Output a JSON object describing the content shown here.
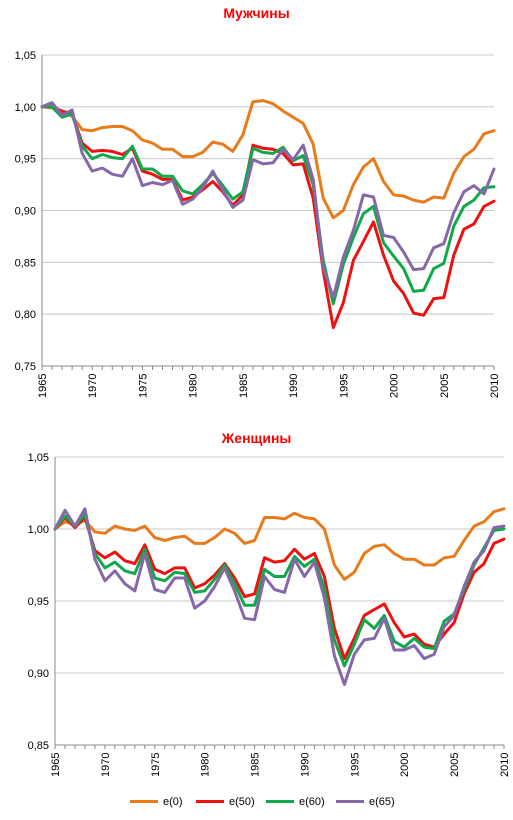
{
  "colors": {
    "e0": "#e87b1c",
    "e50": "#ee1111",
    "e60": "#10a84a",
    "e65": "#8668a8",
    "title": "#ff0000"
  },
  "legend": [
    {
      "key": "e0",
      "label": "e(0)"
    },
    {
      "key": "e50",
      "label": "e(50)"
    },
    {
      "key": "e60",
      "label": "e(60)"
    },
    {
      "key": "e65",
      "label": "e(65)"
    }
  ],
  "chart_data": [
    {
      "type": "line",
      "title": "Мужчины",
      "x": [
        1965,
        1966,
        1967,
        1968,
        1969,
        1970,
        1971,
        1972,
        1973,
        1974,
        1975,
        1976,
        1977,
        1978,
        1979,
        1980,
        1981,
        1982,
        1983,
        1984,
        1985,
        1986,
        1987,
        1988,
        1989,
        1990,
        1991,
        1992,
        1993,
        1994,
        1995,
        1996,
        1997,
        1998,
        1999,
        2000,
        2001,
        2002,
        2003,
        2004,
        2005,
        2006,
        2007,
        2008,
        2009,
        2010
      ],
      "x_ticks": [
        "1965",
        "1970",
        "1975",
        "1980",
        "1985",
        "1990",
        "1995",
        "2000",
        "2005",
        "2010"
      ],
      "y_ticks": [
        "0,75",
        "0,80",
        "0,85",
        "0,90",
        "0,95",
        "1,00",
        "1,05"
      ],
      "ylim": [
        0.75,
        1.05
      ],
      "grid": true,
      "series": [
        {
          "key": "e0",
          "name": "e(0)",
          "values": [
            1.0,
            0.999,
            0.995,
            0.991,
            0.978,
            0.977,
            0.98,
            0.981,
            0.981,
            0.977,
            0.968,
            0.965,
            0.959,
            0.959,
            0.952,
            0.952,
            0.956,
            0.966,
            0.964,
            0.957,
            0.973,
            1.005,
            1.006,
            1.003,
            0.996,
            0.99,
            0.984,
            0.964,
            0.912,
            0.893,
            0.9,
            0.925,
            0.942,
            0.95,
            0.928,
            0.915,
            0.914,
            0.91,
            0.908,
            0.913,
            0.912,
            0.936,
            0.952,
            0.959,
            0.974,
            0.977
          ]
        },
        {
          "key": "e50",
          "name": "e(50)",
          "values": [
            1.0,
            1.0,
            0.996,
            0.993,
            0.965,
            0.957,
            0.958,
            0.957,
            0.954,
            0.96,
            0.938,
            0.935,
            0.93,
            0.93,
            0.91,
            0.913,
            0.92,
            0.928,
            0.918,
            0.905,
            0.915,
            0.963,
            0.96,
            0.959,
            0.955,
            0.944,
            0.945,
            0.912,
            0.842,
            0.787,
            0.811,
            0.852,
            0.87,
            0.889,
            0.857,
            0.832,
            0.82,
            0.801,
            0.799,
            0.815,
            0.816,
            0.857,
            0.882,
            0.887,
            0.904,
            0.909
          ]
        },
        {
          "key": "e60",
          "name": "e(60)",
          "values": [
            1.0,
            1.0,
            0.99,
            0.993,
            0.962,
            0.95,
            0.954,
            0.951,
            0.95,
            0.962,
            0.94,
            0.94,
            0.933,
            0.933,
            0.919,
            0.916,
            0.925,
            0.936,
            0.924,
            0.911,
            0.918,
            0.96,
            0.956,
            0.955,
            0.961,
            0.948,
            0.953,
            0.925,
            0.852,
            0.81,
            0.848,
            0.874,
            0.897,
            0.904,
            0.869,
            0.856,
            0.844,
            0.822,
            0.823,
            0.844,
            0.849,
            0.885,
            0.904,
            0.91,
            0.922,
            0.923
          ]
        },
        {
          "key": "e65",
          "name": "e(65)",
          "values": [
            1.0,
            1.004,
            0.992,
            0.997,
            0.955,
            0.938,
            0.941,
            0.935,
            0.933,
            0.95,
            0.924,
            0.927,
            0.925,
            0.929,
            0.906,
            0.911,
            0.922,
            0.938,
            0.92,
            0.903,
            0.91,
            0.949,
            0.945,
            0.946,
            0.959,
            0.949,
            0.963,
            0.93,
            0.845,
            0.816,
            0.855,
            0.881,
            0.915,
            0.913,
            0.876,
            0.874,
            0.86,
            0.843,
            0.844,
            0.864,
            0.868,
            0.898,
            0.918,
            0.924,
            0.916,
            0.94
          ]
        }
      ]
    },
    {
      "type": "line",
      "title": "Женщины",
      "x": [
        1965,
        1966,
        1967,
        1968,
        1969,
        1970,
        1971,
        1972,
        1973,
        1974,
        1975,
        1976,
        1977,
        1978,
        1979,
        1980,
        1981,
        1982,
        1983,
        1984,
        1985,
        1986,
        1987,
        1988,
        1989,
        1990,
        1991,
        1992,
        1993,
        1994,
        1995,
        1996,
        1997,
        1998,
        1999,
        2000,
        2001,
        2002,
        2003,
        2004,
        2005,
        2006,
        2007,
        2008,
        2009,
        2010
      ],
      "x_ticks": [
        "1965",
        "1970",
        "1975",
        "1980",
        "1985",
        "1990",
        "1995",
        "2000",
        "2005",
        "2010"
      ],
      "y_ticks": [
        "0,85",
        "0,90",
        "0,95",
        "1,00",
        "1,05"
      ],
      "ylim": [
        0.85,
        1.05
      ],
      "grid": true,
      "series": [
        {
          "key": "e0",
          "name": "e(0)",
          "values": [
            1.0,
            1.005,
            1.003,
            1.006,
            0.998,
            0.997,
            1.002,
            1.0,
            0.999,
            1.002,
            0.994,
            0.992,
            0.994,
            0.995,
            0.99,
            0.99,
            0.994,
            1.0,
            0.997,
            0.99,
            0.992,
            1.008,
            1.008,
            1.007,
            1.011,
            1.008,
            1.007,
            1.0,
            0.975,
            0.965,
            0.97,
            0.983,
            0.988,
            0.989,
            0.983,
            0.979,
            0.979,
            0.975,
            0.975,
            0.98,
            0.981,
            0.992,
            1.002,
            1.005,
            1.012,
            1.014
          ]
        },
        {
          "key": "e50",
          "name": "e(50)",
          "values": [
            1.0,
            1.008,
            1.001,
            1.008,
            0.985,
            0.98,
            0.984,
            0.978,
            0.976,
            0.989,
            0.972,
            0.969,
            0.973,
            0.973,
            0.959,
            0.962,
            0.968,
            0.976,
            0.966,
            0.953,
            0.955,
            0.98,
            0.977,
            0.978,
            0.986,
            0.979,
            0.983,
            0.967,
            0.931,
            0.91,
            0.924,
            0.94,
            0.944,
            0.948,
            0.935,
            0.925,
            0.927,
            0.92,
            0.918,
            0.927,
            0.935,
            0.955,
            0.97,
            0.976,
            0.99,
            0.993
          ]
        },
        {
          "key": "e60",
          "name": "e(60)",
          "values": [
            1.0,
            1.009,
            1.002,
            1.01,
            0.983,
            0.973,
            0.977,
            0.971,
            0.969,
            0.986,
            0.966,
            0.964,
            0.97,
            0.969,
            0.956,
            0.957,
            0.965,
            0.975,
            0.962,
            0.947,
            0.947,
            0.972,
            0.967,
            0.967,
            0.981,
            0.974,
            0.979,
            0.959,
            0.923,
            0.905,
            0.92,
            0.937,
            0.931,
            0.94,
            0.922,
            0.918,
            0.924,
            0.918,
            0.917,
            0.936,
            0.941,
            0.958,
            0.975,
            0.987,
            0.999,
            1.0
          ]
        },
        {
          "key": "e65",
          "name": "e(65)",
          "values": [
            1.0,
            1.013,
            1.002,
            1.014,
            0.979,
            0.964,
            0.971,
            0.962,
            0.957,
            0.983,
            0.958,
            0.956,
            0.966,
            0.966,
            0.945,
            0.95,
            0.96,
            0.973,
            0.957,
            0.938,
            0.937,
            0.967,
            0.958,
            0.956,
            0.979,
            0.967,
            0.977,
            0.952,
            0.912,
            0.892,
            0.913,
            0.923,
            0.924,
            0.938,
            0.916,
            0.916,
            0.919,
            0.91,
            0.913,
            0.932,
            0.94,
            0.96,
            0.977,
            0.985,
            1.001,
            1.002
          ]
        }
      ]
    }
  ]
}
